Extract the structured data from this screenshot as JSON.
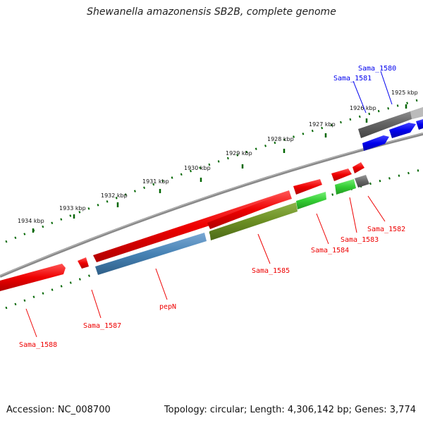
{
  "title": "Shewanella amazonensis SB2B, complete genome",
  "footer": {
    "accession": "Accession: NC_008700",
    "stats": "Topology: circular; Length: 4,306,142 bp; Genes: 3,774"
  },
  "ruler_ticks": [
    "1925 kbp",
    "1926 kbp",
    "1927 kbp",
    "1928 kbp",
    "1929 kbp",
    "1930 kbp",
    "1931 kbp",
    "1932 kbp",
    "1933 kbp",
    "1934 kbp"
  ],
  "gene_labels": [
    "Sama_1580",
    "Sama_1581",
    "Sama_1582",
    "Sama_1583",
    "Sama_1584",
    "Sama_1585",
    "pepN",
    "Sama_1587",
    "Sama_1588"
  ],
  "colors": {
    "red": "#ee0000",
    "blue": "#0000ee",
    "grey": "#666666",
    "steelblue": "#4682b4",
    "olive": "#6b8e23",
    "green": "#33cc33",
    "tick": "#006600"
  }
}
